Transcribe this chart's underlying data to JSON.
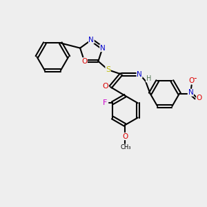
{
  "background_color": "#eeeeee",
  "bond_color": "#000000",
  "atom_colors": {
    "N": "#0000cc",
    "O": "#dd0000",
    "S": "#bbbb00",
    "F": "#cc00cc",
    "H": "#557755",
    "C": "#000000"
  },
  "figsize": [
    3.0,
    3.0
  ],
  "dpi": 100
}
